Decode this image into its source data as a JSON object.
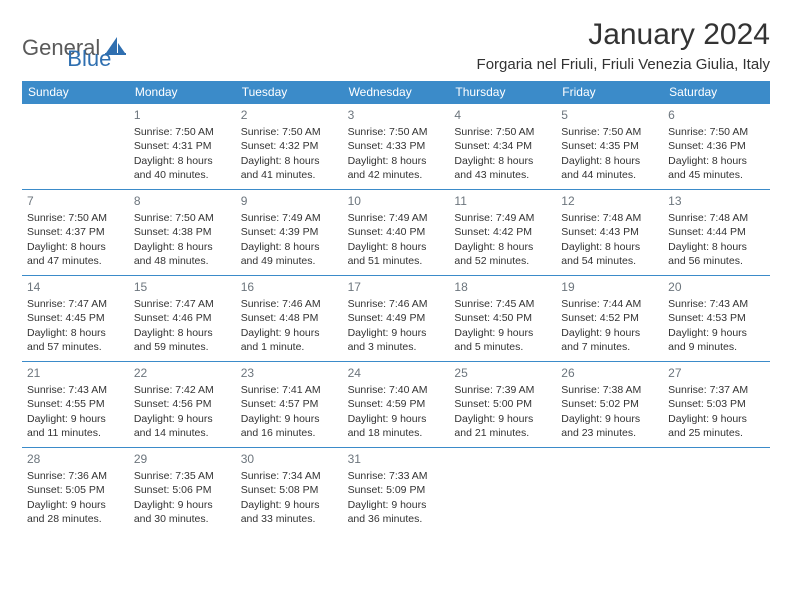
{
  "logo": {
    "general": "General",
    "blue": "Blue"
  },
  "title": "January 2024",
  "location": "Forgaria nel Friuli, Friuli Venezia Giulia, Italy",
  "header_bg": "#3b8bc9",
  "border_color": "#3b8bc9",
  "days_of_week": [
    "Sunday",
    "Monday",
    "Tuesday",
    "Wednesday",
    "Thursday",
    "Friday",
    "Saturday"
  ],
  "start_offset": 1,
  "days": [
    {
      "n": "1",
      "sunrise": "7:50 AM",
      "sunset": "4:31 PM",
      "dl1": "Daylight: 8 hours",
      "dl2": "and 40 minutes."
    },
    {
      "n": "2",
      "sunrise": "7:50 AM",
      "sunset": "4:32 PM",
      "dl1": "Daylight: 8 hours",
      "dl2": "and 41 minutes."
    },
    {
      "n": "3",
      "sunrise": "7:50 AM",
      "sunset": "4:33 PM",
      "dl1": "Daylight: 8 hours",
      "dl2": "and 42 minutes."
    },
    {
      "n": "4",
      "sunrise": "7:50 AM",
      "sunset": "4:34 PM",
      "dl1": "Daylight: 8 hours",
      "dl2": "and 43 minutes."
    },
    {
      "n": "5",
      "sunrise": "7:50 AM",
      "sunset": "4:35 PM",
      "dl1": "Daylight: 8 hours",
      "dl2": "and 44 minutes."
    },
    {
      "n": "6",
      "sunrise": "7:50 AM",
      "sunset": "4:36 PM",
      "dl1": "Daylight: 8 hours",
      "dl2": "and 45 minutes."
    },
    {
      "n": "7",
      "sunrise": "7:50 AM",
      "sunset": "4:37 PM",
      "dl1": "Daylight: 8 hours",
      "dl2": "and 47 minutes."
    },
    {
      "n": "8",
      "sunrise": "7:50 AM",
      "sunset": "4:38 PM",
      "dl1": "Daylight: 8 hours",
      "dl2": "and 48 minutes."
    },
    {
      "n": "9",
      "sunrise": "7:49 AM",
      "sunset": "4:39 PM",
      "dl1": "Daylight: 8 hours",
      "dl2": "and 49 minutes."
    },
    {
      "n": "10",
      "sunrise": "7:49 AM",
      "sunset": "4:40 PM",
      "dl1": "Daylight: 8 hours",
      "dl2": "and 51 minutes."
    },
    {
      "n": "11",
      "sunrise": "7:49 AM",
      "sunset": "4:42 PM",
      "dl1": "Daylight: 8 hours",
      "dl2": "and 52 minutes."
    },
    {
      "n": "12",
      "sunrise": "7:48 AM",
      "sunset": "4:43 PM",
      "dl1": "Daylight: 8 hours",
      "dl2": "and 54 minutes."
    },
    {
      "n": "13",
      "sunrise": "7:48 AM",
      "sunset": "4:44 PM",
      "dl1": "Daylight: 8 hours",
      "dl2": "and 56 minutes."
    },
    {
      "n": "14",
      "sunrise": "7:47 AM",
      "sunset": "4:45 PM",
      "dl1": "Daylight: 8 hours",
      "dl2": "and 57 minutes."
    },
    {
      "n": "15",
      "sunrise": "7:47 AM",
      "sunset": "4:46 PM",
      "dl1": "Daylight: 8 hours",
      "dl2": "and 59 minutes."
    },
    {
      "n": "16",
      "sunrise": "7:46 AM",
      "sunset": "4:48 PM",
      "dl1": "Daylight: 9 hours",
      "dl2": "and 1 minute."
    },
    {
      "n": "17",
      "sunrise": "7:46 AM",
      "sunset": "4:49 PM",
      "dl1": "Daylight: 9 hours",
      "dl2": "and 3 minutes."
    },
    {
      "n": "18",
      "sunrise": "7:45 AM",
      "sunset": "4:50 PM",
      "dl1": "Daylight: 9 hours",
      "dl2": "and 5 minutes."
    },
    {
      "n": "19",
      "sunrise": "7:44 AM",
      "sunset": "4:52 PM",
      "dl1": "Daylight: 9 hours",
      "dl2": "and 7 minutes."
    },
    {
      "n": "20",
      "sunrise": "7:43 AM",
      "sunset": "4:53 PM",
      "dl1": "Daylight: 9 hours",
      "dl2": "and 9 minutes."
    },
    {
      "n": "21",
      "sunrise": "7:43 AM",
      "sunset": "4:55 PM",
      "dl1": "Daylight: 9 hours",
      "dl2": "and 11 minutes."
    },
    {
      "n": "22",
      "sunrise": "7:42 AM",
      "sunset": "4:56 PM",
      "dl1": "Daylight: 9 hours",
      "dl2": "and 14 minutes."
    },
    {
      "n": "23",
      "sunrise": "7:41 AM",
      "sunset": "4:57 PM",
      "dl1": "Daylight: 9 hours",
      "dl2": "and 16 minutes."
    },
    {
      "n": "24",
      "sunrise": "7:40 AM",
      "sunset": "4:59 PM",
      "dl1": "Daylight: 9 hours",
      "dl2": "and 18 minutes."
    },
    {
      "n": "25",
      "sunrise": "7:39 AM",
      "sunset": "5:00 PM",
      "dl1": "Daylight: 9 hours",
      "dl2": "and 21 minutes."
    },
    {
      "n": "26",
      "sunrise": "7:38 AM",
      "sunset": "5:02 PM",
      "dl1": "Daylight: 9 hours",
      "dl2": "and 23 minutes."
    },
    {
      "n": "27",
      "sunrise": "7:37 AM",
      "sunset": "5:03 PM",
      "dl1": "Daylight: 9 hours",
      "dl2": "and 25 minutes."
    },
    {
      "n": "28",
      "sunrise": "7:36 AM",
      "sunset": "5:05 PM",
      "dl1": "Daylight: 9 hours",
      "dl2": "and 28 minutes."
    },
    {
      "n": "29",
      "sunrise": "7:35 AM",
      "sunset": "5:06 PM",
      "dl1": "Daylight: 9 hours",
      "dl2": "and 30 minutes."
    },
    {
      "n": "30",
      "sunrise": "7:34 AM",
      "sunset": "5:08 PM",
      "dl1": "Daylight: 9 hours",
      "dl2": "and 33 minutes."
    },
    {
      "n": "31",
      "sunrise": "7:33 AM",
      "sunset": "5:09 PM",
      "dl1": "Daylight: 9 hours",
      "dl2": "and 36 minutes."
    }
  ]
}
